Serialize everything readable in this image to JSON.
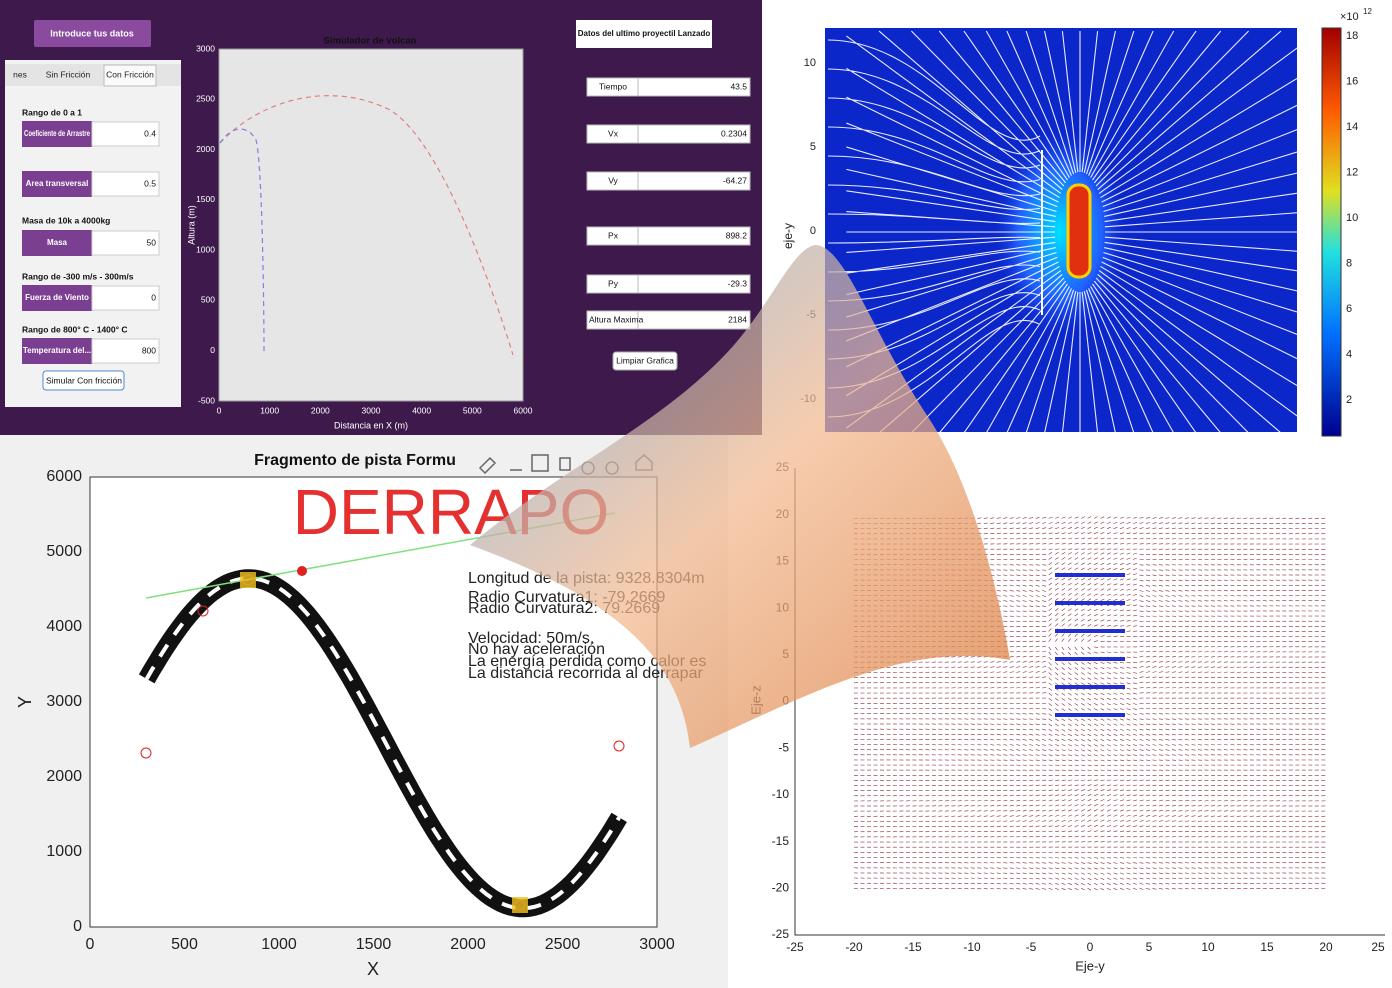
{
  "app": {
    "header_button": "Introduce tus datos",
    "tabs": [
      "nes",
      "Sin Fricción",
      "Con Fricción"
    ],
    "fields": [
      {
        "hint": "Rango de 0 a 1",
        "label": "Coeficiente de Arrastre",
        "value": 0.4
      },
      {
        "label": "Area transversal",
        "value": 0.5
      },
      {
        "hint": "Masa de 10k a 4000kg",
        "label": "Masa",
        "value": 50
      },
      {
        "hint": "Rango de -300 m/s - 300m/s",
        "label": "Fuerza de Viento",
        "value": 0
      },
      {
        "hint": "Rango de 800° C - 1400° C",
        "label": "Temperatura del...",
        "value": 800
      }
    ],
    "simulate_button": "Simular Con fricción",
    "plot": {
      "title": "Simulador de volcan",
      "xlabel": "Distancia en X (m)",
      "ylabel": "Altura (m)",
      "xticks": [
        0,
        1000,
        2000,
        3000,
        4000,
        5000,
        6000
      ],
      "yticks": [
        3000,
        2500,
        2000,
        1500,
        1000,
        500,
        0,
        -500
      ]
    },
    "results_title": "Datos del ultimo proyectil Lanzado",
    "results": [
      {
        "label": "Tiempo",
        "value": 43.5
      },
      {
        "label": "Vx",
        "value": 0.2304
      },
      {
        "label": "Vy",
        "value": -64.27
      },
      {
        "label": "Px",
        "value": 898.2
      },
      {
        "label": "Py",
        "value": -29.3
      },
      {
        "label": "Altura Maxima",
        "value": 2184
      }
    ],
    "clear_button": "Limpiar Grafica"
  },
  "streamplot": {
    "ylabel": "eje-y",
    "yticks": [
      10,
      5,
      0,
      -5,
      -10
    ],
    "colorbar_ticks": [
      18,
      16,
      14,
      12,
      10,
      8,
      6,
      4,
      2
    ],
    "colorbar_multiplier": "×10",
    "colorbar_exponent": "12"
  },
  "track": {
    "title": "Fragmento de pista Formu",
    "banner": "DERRAPO",
    "xlabel": "X",
    "ylabel": "Y",
    "xticks": [
      0,
      500,
      1000,
      1500,
      2000,
      2500,
      3000
    ],
    "yticks": [
      0,
      1000,
      2000,
      3000,
      4000,
      5000,
      6000
    ],
    "annotations": [
      "Longitud de la pista: 9328.8304m",
      "Radio Curvatura1: -79.2669",
      "Radio Curvatura2: 79.2669",
      "Velocidad: 50m/s.",
      "No hay aceleración",
      "La energía perdida como calor es",
      "La distancia recorrida al derrapar"
    ]
  },
  "quiver": {
    "xlabel": "Eje-y",
    "ylabel": "Eje-z",
    "xticks": [
      -25,
      -20,
      -15,
      -10,
      -5,
      0,
      5,
      10,
      15,
      20,
      25
    ],
    "yticks": [
      25,
      20,
      15,
      10,
      5,
      0,
      -5,
      -10,
      -15,
      -20,
      -25
    ]
  }
}
